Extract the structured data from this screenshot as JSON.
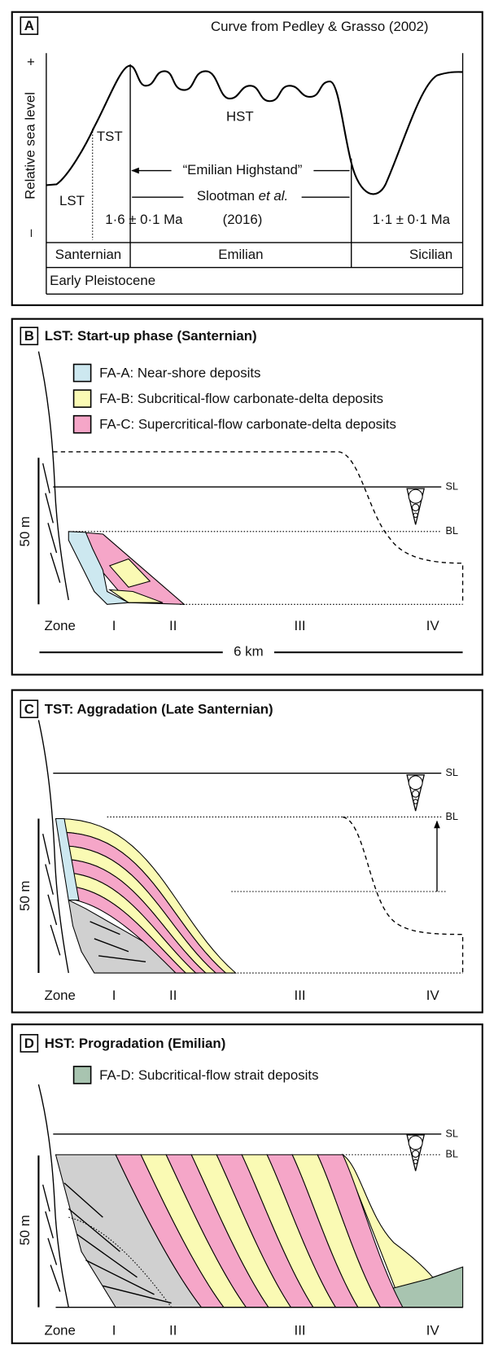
{
  "panel_a": {
    "letter": "A",
    "source": "Curve from Pedley & Grasso (2002)",
    "axis_label": "Relative sea level",
    "axis_high": "+",
    "axis_low": "–",
    "tracts": {
      "lst": "LST",
      "tst": "TST",
      "hst": "HST"
    },
    "highstand": "“Emilian Highstand”",
    "reference": {
      "authors": "Slootman",
      "etal": "et al.",
      "year": "(2016)"
    },
    "age_start": "1·6 ± 0·1 Ma",
    "age_end": "1·1 ± 0·1 Ma",
    "stages": [
      "Santernian",
      "Emilian",
      "Sicilian"
    ],
    "epoch": "Early Pleistocene"
  },
  "panel_b": {
    "letter": "B",
    "title": "LST: Start-up phase (Santernian)",
    "legend": [
      "FA-A: Near-shore deposits",
      "FA-B: Subcritical-flow carbonate-delta deposits",
      "FA-C: Supercritical-flow carbonate-delta deposits"
    ],
    "sl": "SL",
    "bl": "BL",
    "scale": "50 m",
    "zone": "Zone",
    "zones": [
      "I",
      "II",
      "III",
      "IV"
    ],
    "distance": "6 km"
  },
  "panel_c": {
    "letter": "C",
    "title": "TST: Aggradation (Late Santernian)",
    "sl": "SL",
    "bl": "BL",
    "scale": "50 m",
    "zone": "Zone",
    "zones": [
      "I",
      "II",
      "III",
      "IV"
    ]
  },
  "panel_d": {
    "letter": "D",
    "title": "HST: Progradation (Emilian)",
    "legend": [
      "FA-D: Subcritical-flow strait deposits"
    ],
    "sl": "SL",
    "bl": "BL",
    "scale": "50 m",
    "zone": "Zone",
    "zones": [
      "I",
      "II",
      "III",
      "IV"
    ]
  }
}
